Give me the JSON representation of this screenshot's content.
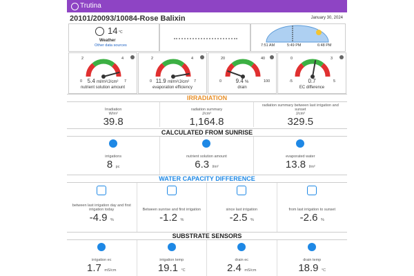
{
  "header": {
    "app": "Trutina",
    "title": "20101/20093/10084-Rose Balixin",
    "date": "January 30, 2024"
  },
  "weather": {
    "temp": "14",
    "unit": "°C",
    "brand": "Weather",
    "link": "Other data sources"
  },
  "sun": {
    "sunrise": "7:51 AM",
    "now": "5:49 PM",
    "sunset": "6:48 PM"
  },
  "gauges": [
    {
      "ticks": [
        "2",
        "4",
        "0",
        "7"
      ],
      "value": "5.4",
      "unit": "ml/m²/J/cm²",
      "label": "nutrient solution amount"
    },
    {
      "ticks": [
        "2",
        "4",
        "0",
        "7"
      ],
      "value": "11.9",
      "unit": "ml/m²/J/cm²",
      "label": "evaporation efficiency"
    },
    {
      "ticks": [
        "20",
        "40",
        "0",
        "100"
      ],
      "value": "9.4",
      "unit": "%",
      "label": "drain"
    },
    {
      "ticks": [
        "0",
        "3",
        "-5",
        "5"
      ],
      "value": "0.7",
      "unit": "",
      "label": "EC difference"
    }
  ],
  "sections": [
    {
      "title": "IRRADIATION",
      "cells": [
        {
          "label": "Irradiation",
          "unit": "W/m²",
          "value": "39.8"
        },
        {
          "label": "radiation summary",
          "unit": "J/cm²",
          "value": "1,164.8"
        },
        {
          "label": "radiation summary between last irrigation and sunset",
          "unit": "J/cm²",
          "value": "329.5"
        }
      ]
    },
    {
      "title": "CALCULATED FROM SUNRISE",
      "cells": [
        {
          "label": "irrigations",
          "value": "8",
          "unit": "pc"
        },
        {
          "label": "nutrient solution amount",
          "value": "6.3",
          "unit": "l/m²"
        },
        {
          "label": "evaporated water",
          "value": "13.8",
          "unit": "l/m²"
        }
      ]
    },
    {
      "title": "WATER CAPACITY DIFFERENCE",
      "cells": [
        {
          "label": "between last irrigation day and first irrigation today",
          "value": "-4.9",
          "unit": "%"
        },
        {
          "label": "Between sunrise and first irrigation",
          "value": "-1.2",
          "unit": "%"
        },
        {
          "label": "since last irrigation",
          "value": "-2.5",
          "unit": "%"
        },
        {
          "label": "from last irrigation to sunset",
          "value": "-2.6",
          "unit": "%"
        }
      ]
    },
    {
      "title": "SUBSTRATE SENSORS",
      "cells": [
        {
          "label": "irrigation ec",
          "value": "1.7",
          "unit": "mS/cm"
        },
        {
          "label": "irrigation temp",
          "value": "19.1",
          "unit": "°C"
        },
        {
          "label": "drain ec",
          "value": "2.4",
          "unit": "mS/cm"
        },
        {
          "label": "drain temp",
          "value": "18.9",
          "unit": "°C"
        }
      ]
    }
  ]
}
